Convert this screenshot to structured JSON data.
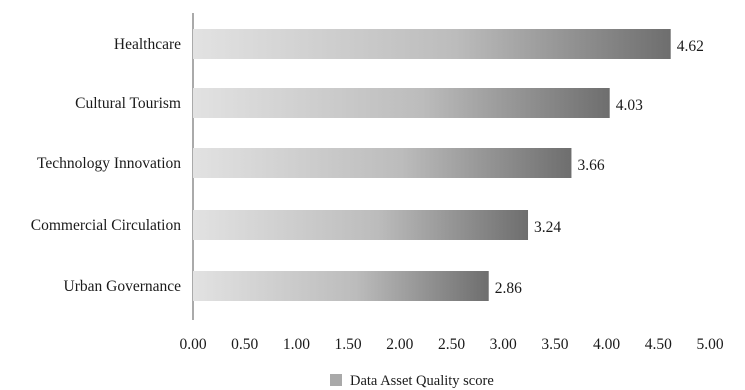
{
  "chart_data": {
    "type": "bar",
    "orientation": "horizontal",
    "categories": [
      "Healthcare",
      "Cultural Tourism",
      "Technology Innovation",
      "Commercial Circulation",
      "Urban Governance"
    ],
    "series": [
      {
        "name": "Data Asset Quality score",
        "values": [
          4.62,
          4.03,
          3.66,
          3.24,
          2.86
        ]
      }
    ],
    "value_labels": [
      "4.62",
      "4.03",
      "3.66",
      "3.24",
      "2.86"
    ],
    "x_ticks": [
      "0.00",
      "0.50",
      "1.00",
      "1.50",
      "2.00",
      "2.50",
      "3.00",
      "3.50",
      "4.00",
      "4.50",
      "5.00"
    ],
    "xlim": [
      0,
      5
    ],
    "title": "",
    "xlabel": "",
    "ylabel": "",
    "grid": false,
    "legend_position": "bottom-center",
    "colors": {
      "bar_start": "#e2e2e2",
      "bar_end": "#6e6e6e",
      "legend_swatch": "#a9a9a9"
    }
  }
}
